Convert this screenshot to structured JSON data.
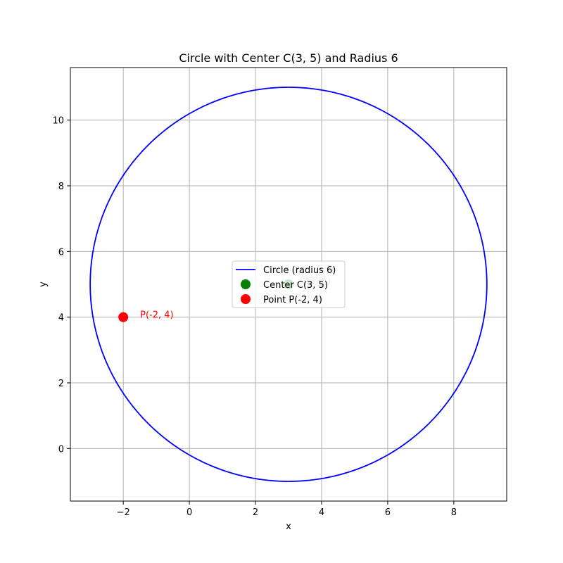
{
  "chart_data": {
    "type": "scatter",
    "title": "Circle with Center C(3, 5) and Radius 6",
    "xlabel": "x",
    "ylabel": "y",
    "xlim": [
      -3.6,
      9.6
    ],
    "ylim": [
      -1.6,
      11.6
    ],
    "xticks": [
      -2,
      0,
      2,
      4,
      6,
      8
    ],
    "yticks": [
      0,
      2,
      4,
      6,
      8,
      10
    ],
    "xtick_labels": [
      "−2",
      "0",
      "2",
      "4",
      "6",
      "8"
    ],
    "ytick_labels": [
      "0",
      "2",
      "4",
      "6",
      "8",
      "10"
    ],
    "grid": true,
    "legend_placement": "center",
    "circle": {
      "center": [
        3,
        5
      ],
      "radius": 6
    },
    "series": [
      {
        "name": "Circle (radius 6)",
        "kind": "line",
        "color": "#0000ff"
      },
      {
        "name": "Center C(3, 5)",
        "kind": "point",
        "x": 3,
        "y": 5,
        "color": "#008000"
      },
      {
        "name": "Point P(-2, 4)",
        "kind": "point",
        "x": -2,
        "y": 4,
        "color": "#ff0000"
      }
    ],
    "annotations": [
      {
        "text": "C(3, 5)",
        "x": 3,
        "y": 5,
        "color": "#008000"
      },
      {
        "text": "P(-2, 4)",
        "x": -2,
        "y": 4,
        "color": "#ff0000"
      }
    ]
  }
}
